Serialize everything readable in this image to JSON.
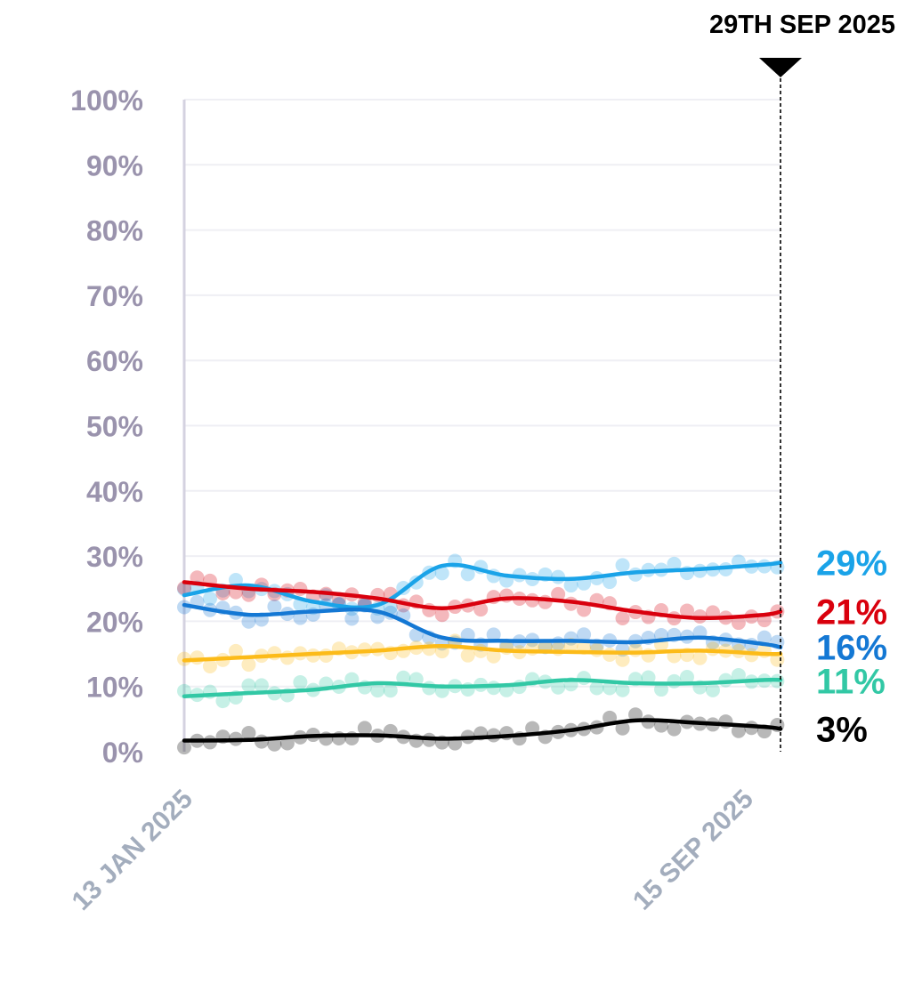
{
  "chart_data": {
    "type": "line",
    "title": "",
    "xlabel": "",
    "ylabel": "",
    "ylim": [
      0,
      100
    ],
    "yticks": [
      "0%",
      "10%",
      "20%",
      "30%",
      "40%",
      "50%",
      "60%",
      "70%",
      "80%",
      "90%",
      "100%"
    ],
    "x_start_label": "13 JAN 2025",
    "x_end_label": "15 SEP 2025",
    "marker_label": "29TH SEP 2025",
    "x": [
      0,
      4,
      8,
      12,
      16,
      20,
      24,
      28,
      32,
      36,
      37
    ],
    "x_note": "weeks since 13 Jan 2025; 15 Sep = week 35, marker (29 Sep) = week 37",
    "series": [
      {
        "name": "light-blue",
        "color": "#1aa3e8",
        "end_label": "29%",
        "values": [
          24,
          25.5,
          23,
          22.5,
          28.5,
          27,
          26.5,
          27.5,
          28,
          28.7,
          29
        ]
      },
      {
        "name": "red",
        "color": "#d9000d",
        "end_label": "21%",
        "values": [
          26,
          25,
          24.5,
          23.5,
          22,
          23.5,
          23,
          21.5,
          20.5,
          21,
          21.5
        ]
      },
      {
        "name": "blue",
        "color": "#1478d4",
        "end_label": "16%",
        "values": [
          22.5,
          21,
          21.5,
          21.5,
          17.5,
          17,
          17,
          16.8,
          17.5,
          16.5,
          16
        ]
      },
      {
        "name": "yellow",
        "color": "#fcbb19",
        "end_label": "",
        "values": [
          14,
          14.5,
          15,
          15.5,
          16.2,
          15.5,
          15.3,
          15.2,
          15.5,
          15,
          15
        ]
      },
      {
        "name": "green",
        "color": "#32c8a5",
        "end_label": "11%",
        "values": [
          8.5,
          9,
          9.5,
          10.5,
          10,
          10.2,
          11,
          10.5,
          10.5,
          11,
          11
        ]
      },
      {
        "name": "black",
        "color": "#000000",
        "end_label": "3%",
        "values": [
          1.7,
          1.8,
          2.4,
          2.5,
          2,
          2.4,
          3.3,
          4.8,
          4.4,
          3.8,
          3.5
        ]
      }
    ]
  }
}
